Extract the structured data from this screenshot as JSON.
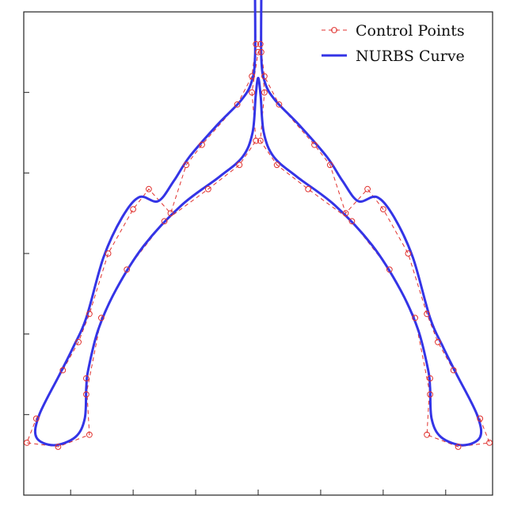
{
  "chart_data": {
    "type": "line",
    "title": "",
    "xlabel": "",
    "ylabel": "",
    "grid": false,
    "legend_placement": "top-right",
    "series": [
      {
        "name": "Control Points",
        "style": "dashed-with-circle-markers",
        "color": "#e0322f",
        "points": [
          [
            0.5,
            1.45
          ],
          [
            0.5,
            1.25
          ],
          [
            0.98,
            2.2
          ],
          [
            1.8,
            2.8
          ],
          [
            3.0,
            3.4
          ],
          [
            4.4,
            3.8
          ],
          [
            5.4,
            4.1
          ],
          [
            5.93,
            4.4
          ],
          [
            5.8,
            5.0
          ],
          [
            6.0,
            5.5
          ],
          [
            6.1,
            5.5
          ],
          [
            6.2,
            5.0
          ],
          [
            6.07,
            4.4
          ],
          [
            6.6,
            4.1
          ],
          [
            7.6,
            3.8
          ],
          [
            9.0,
            3.4
          ],
          [
            10.2,
            2.8
          ],
          [
            11.02,
            2.2
          ],
          [
            11.5,
            1.25
          ],
          [
            11.5,
            1.45
          ],
          [
            11.4,
            0.75
          ],
          [
            12.4,
            0.6
          ],
          [
            13.4,
            0.65
          ],
          [
            13.1,
            0.95
          ],
          [
            12.25,
            1.55
          ],
          [
            11.75,
            1.9
          ],
          [
            11.4,
            2.25
          ],
          [
            10.8,
            3.0
          ],
          [
            10.0,
            3.55
          ],
          [
            9.5,
            3.8
          ],
          [
            8.8,
            3.5
          ],
          [
            8.3,
            4.1
          ],
          [
            7.8,
            4.35
          ],
          [
            6.67,
            4.85
          ],
          [
            6.2,
            5.2
          ],
          [
            6.07,
            5.6
          ],
          [
            6.1,
            6.6
          ],
          [
            6.0,
            6.5
          ],
          [
            5.9,
            6.6
          ],
          [
            5.93,
            5.6
          ],
          [
            5.8,
            5.2
          ],
          [
            5.33,
            4.85
          ],
          [
            4.2,
            4.35
          ],
          [
            3.7,
            4.1
          ],
          [
            3.2,
            3.5
          ],
          [
            2.5,
            3.8
          ],
          [
            2.0,
            3.55
          ],
          [
            1.2,
            3.0
          ],
          [
            0.6,
            2.25
          ],
          [
            0.25,
            1.9
          ],
          [
            -0.25,
            1.55
          ],
          [
            -1.1,
            0.95
          ],
          [
            -1.4,
            0.65
          ],
          [
            -0.4,
            0.6
          ],
          [
            0.6,
            0.75
          ],
          [
            0.5,
            1.45
          ]
        ]
      },
      {
        "name": "NURBS Curve",
        "style": "solid",
        "color": "#3434e6",
        "points": [
          [
            0.5,
            1.33
          ],
          [
            0.56,
            1.55
          ],
          [
            0.88,
            2.05
          ],
          [
            1.45,
            2.55
          ],
          [
            2.35,
            3.1
          ],
          [
            3.55,
            3.6
          ],
          [
            4.75,
            3.95
          ],
          [
            5.5,
            4.2
          ],
          [
            5.82,
            4.5
          ],
          [
            5.92,
            4.95
          ],
          [
            6.0,
            5.18
          ],
          [
            6.08,
            4.95
          ],
          [
            6.18,
            4.5
          ],
          [
            6.5,
            4.2
          ],
          [
            7.25,
            3.95
          ],
          [
            8.45,
            3.6
          ],
          [
            9.65,
            3.1
          ],
          [
            10.55,
            2.55
          ],
          [
            11.12,
            2.05
          ],
          [
            11.44,
            1.55
          ],
          [
            11.5,
            1.33
          ],
          [
            11.55,
            0.95
          ],
          [
            11.85,
            0.72
          ],
          [
            12.55,
            0.62
          ],
          [
            13.1,
            0.72
          ],
          [
            13.0,
            1.0
          ],
          [
            12.35,
            1.5
          ],
          [
            11.9,
            1.85
          ],
          [
            11.5,
            2.2
          ],
          [
            10.95,
            2.95
          ],
          [
            10.35,
            3.45
          ],
          [
            9.8,
            3.7
          ],
          [
            9.2,
            3.65
          ],
          [
            8.7,
            3.9
          ],
          [
            8.2,
            4.2
          ],
          [
            7.3,
            4.6
          ],
          [
            6.55,
            4.9
          ],
          [
            6.22,
            5.12
          ],
          [
            6.1,
            5.45
          ],
          [
            6.1,
            6.4
          ],
          [
            6.04,
            6.5
          ],
          [
            6.0,
            6.44
          ],
          [
            5.96,
            6.5
          ],
          [
            5.9,
            6.4
          ],
          [
            5.9,
            5.45
          ],
          [
            5.78,
            5.12
          ],
          [
            5.45,
            4.9
          ],
          [
            4.7,
            4.6
          ],
          [
            3.8,
            4.2
          ],
          [
            3.3,
            3.9
          ],
          [
            2.8,
            3.65
          ],
          [
            2.2,
            3.7
          ],
          [
            1.65,
            3.45
          ],
          [
            1.05,
            2.95
          ],
          [
            0.5,
            2.2
          ],
          [
            0.1,
            1.85
          ],
          [
            -0.35,
            1.5
          ],
          [
            -1.0,
            1.0
          ],
          [
            -1.1,
            0.72
          ],
          [
            -0.55,
            0.62
          ],
          [
            0.15,
            0.72
          ],
          [
            0.45,
            0.95
          ],
          [
            0.5,
            1.33
          ]
        ]
      }
    ]
  }
}
